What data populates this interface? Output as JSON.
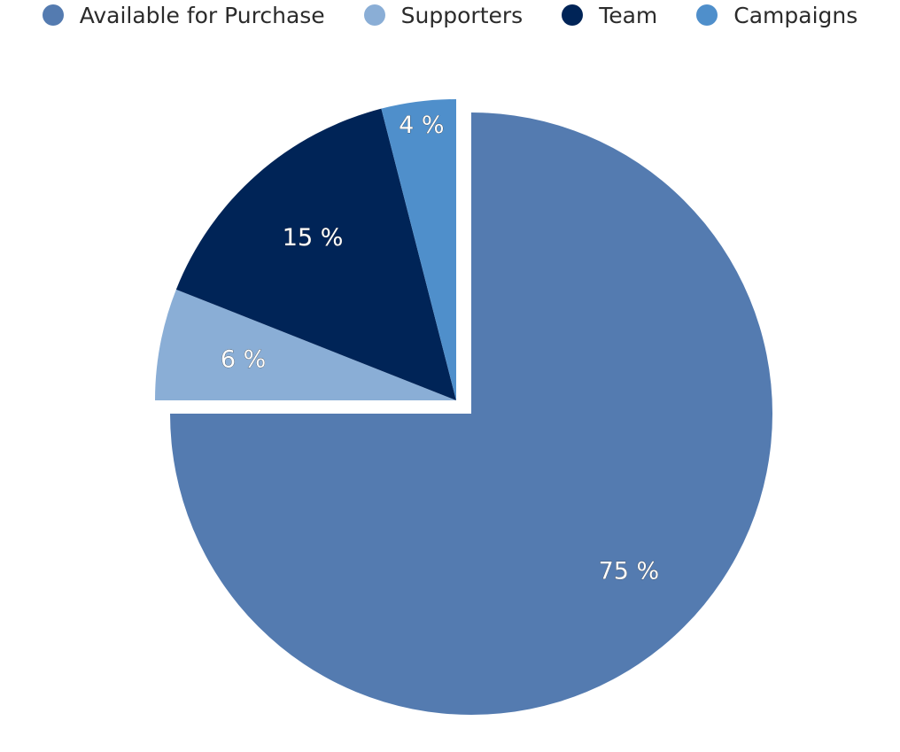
{
  "chart_data": {
    "type": "pie",
    "title": "",
    "legend_position": "top-center",
    "label_suffix": " %",
    "slices": [
      {
        "name": "Available for Purchase",
        "value": 75,
        "color": "#547bb0",
        "exploded": false
      },
      {
        "name": "Supporters",
        "value": 6,
        "color": "#8aaed6",
        "exploded": true
      },
      {
        "name": "Team",
        "value": 15,
        "color": "#002457",
        "exploded": true
      },
      {
        "name": "Campaigns",
        "value": 4,
        "color": "#4f8fcb",
        "exploded": true
      }
    ]
  }
}
